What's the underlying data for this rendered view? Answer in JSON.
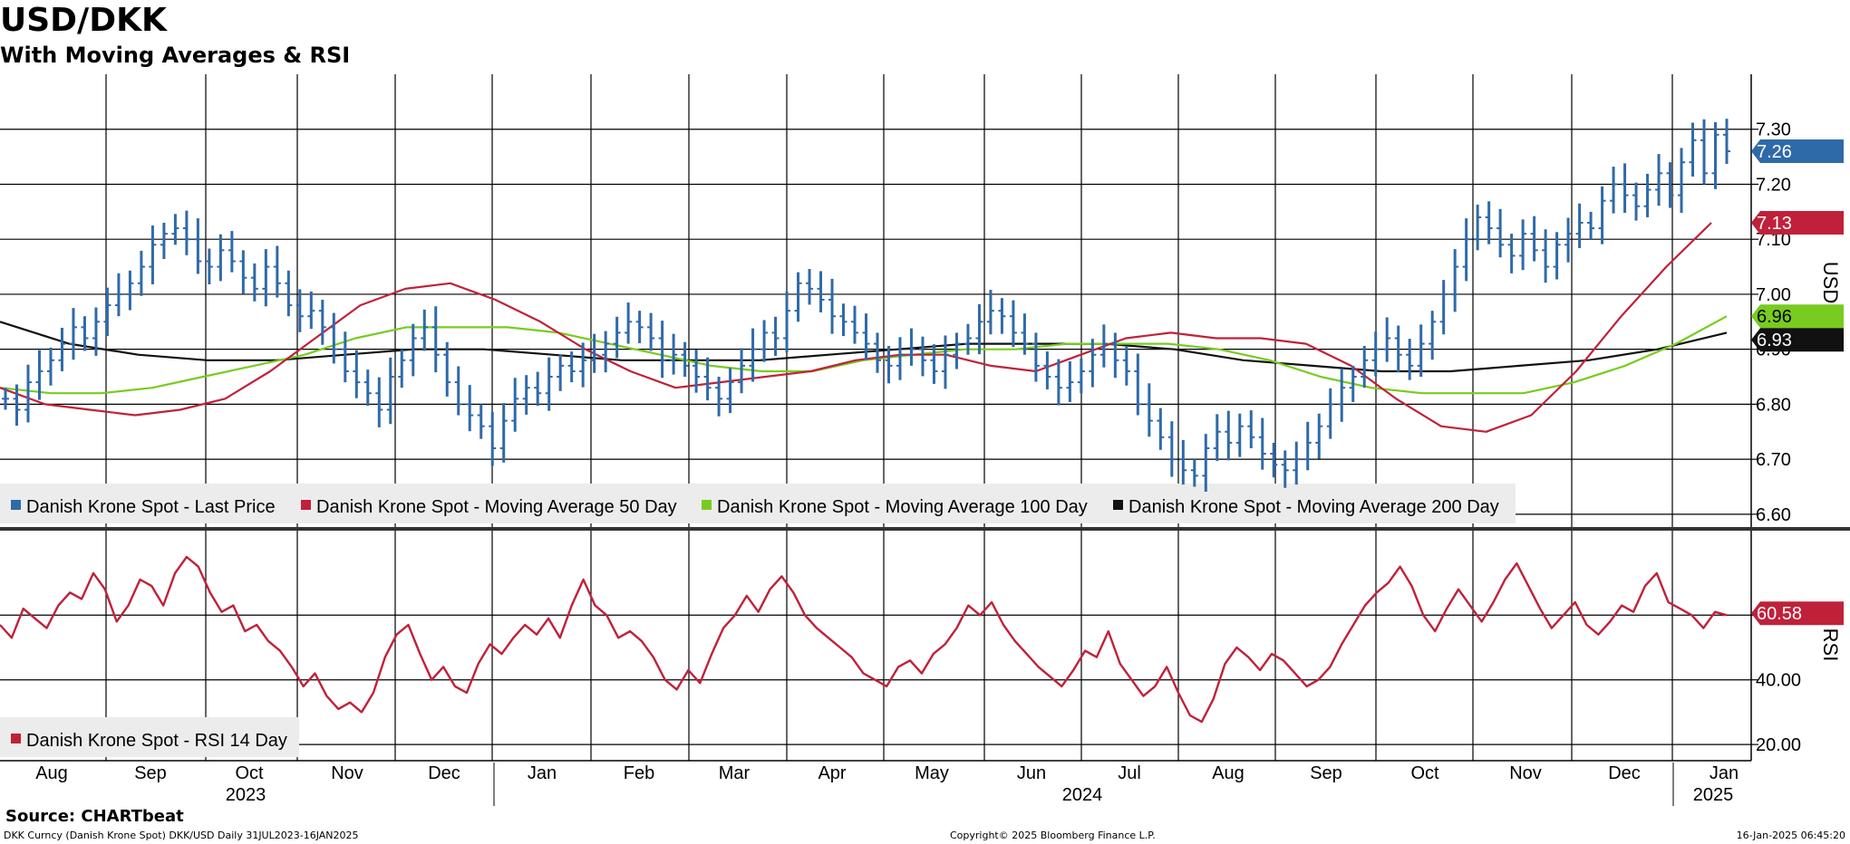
{
  "header": {
    "title": "USD/DKK",
    "subtitle": "With Moving Averages & RSI"
  },
  "footer": {
    "source": "Source: CHARTbeat",
    "ticker_info": "DKK Curncy (Danish Krone Spot) DKK/USD  Daily 31JUL2023-16JAN2025",
    "copyright": "Copyright© 2025 Bloomberg Finance L.P.",
    "timestamp": "16-Jan-2025 06:45:20"
  },
  "colors": {
    "price": "#2f6aa8",
    "ma50": "#c0213a",
    "ma100": "#77cc1f",
    "ma200": "#111111",
    "rsi": "#c0213a",
    "grid": "#000000",
    "legend_bg": "#ececec"
  },
  "chart_data": [
    {
      "type": "line",
      "title": "Price panel",
      "ylabel": "USD",
      "ylim": [
        6.58,
        7.4
      ],
      "y_ticks": [
        "7.30",
        "7.20",
        "7.10",
        "7.00",
        "6.90",
        "6.80",
        "6.70",
        "6.60"
      ],
      "legend": [
        "Danish Krone Spot - Last Price",
        "Danish Krone Spot - Moving Average 50 Day",
        "Danish Krone Spot - Moving Average 100 Day",
        "Danish Krone Spot - Moving Average 200 Day"
      ],
      "month_labels": [
        "Aug",
        "Sep",
        "Oct",
        "Nov",
        "Dec",
        "Jan",
        "Feb",
        "Mar",
        "Apr",
        "May",
        "Jun",
        "Jul",
        "Aug",
        "Sep",
        "Oct",
        "Nov",
        "Dec",
        "Jan"
      ],
      "year_labels": [
        "2023",
        "2024",
        "2025"
      ],
      "series": [
        {
          "name": "Danish Krone Spot - Last Price",
          "style": "ohlc-bars",
          "values": [
            6.81,
            6.79,
            6.84,
            6.86,
            6.88,
            6.91,
            6.94,
            6.92,
            6.95,
            6.98,
            7.0,
            7.02,
            7.05,
            7.09,
            7.11,
            7.12,
            7.1,
            7.06,
            7.05,
            7.08,
            7.06,
            7.03,
            7.01,
            7.05,
            7.02,
            6.98,
            6.96,
            6.97,
            6.94,
            6.9,
            6.86,
            6.84,
            6.82,
            6.79,
            6.85,
            6.88,
            6.92,
            6.94,
            6.89,
            6.84,
            6.8,
            6.78,
            6.76,
            6.72,
            6.77,
            6.81,
            6.83,
            6.82,
            6.85,
            6.87,
            6.86,
            6.88,
            6.89,
            6.91,
            6.93,
            6.95,
            6.94,
            6.92,
            6.88,
            6.89,
            6.87,
            6.85,
            6.83,
            6.81,
            6.84,
            6.87,
            6.9,
            6.93,
            6.92,
            6.97,
            7.02,
            7.01,
            6.99,
            6.96,
            6.95,
            6.93,
            6.91,
            6.88,
            6.87,
            6.89,
            6.9,
            6.88,
            6.86,
            6.89,
            6.91,
            6.92,
            6.95,
            6.97,
            6.96,
            6.93,
            6.91,
            6.87,
            6.85,
            6.83,
            6.84,
            6.86,
            6.89,
            6.91,
            6.88,
            6.86,
            6.8,
            6.77,
            6.74,
            6.7,
            6.68,
            6.67,
            6.72,
            6.75,
            6.73,
            6.76,
            6.74,
            6.71,
            6.69,
            6.68,
            6.7,
            6.73,
            6.76,
            6.8,
            6.83,
            6.85,
            6.88,
            6.9,
            6.92,
            6.89,
            6.87,
            6.91,
            6.95,
            7.0,
            7.05,
            7.1,
            7.14,
            7.12,
            7.09,
            7.07,
            7.11,
            7.08,
            7.05,
            7.09,
            7.11,
            7.13,
            7.12,
            7.17,
            7.2,
            7.18,
            7.16,
            7.19,
            7.22,
            7.18,
            7.24,
            7.28,
            7.22,
            7.29,
            7.26
          ]
        },
        {
          "name": "Danish Krone Spot - Moving Average 50 Day",
          "values": [
            6.83,
            6.8,
            6.79,
            6.78,
            6.79,
            6.81,
            6.86,
            6.92,
            6.98,
            7.01,
            7.02,
            6.99,
            6.95,
            6.9,
            6.86,
            6.83,
            6.84,
            6.85,
            6.86,
            6.88,
            6.89,
            6.89,
            6.87,
            6.86,
            6.89,
            6.92,
            6.93,
            6.92,
            6.92,
            6.91,
            6.87,
            6.81,
            6.76,
            6.75,
            6.78,
            6.86,
            6.96,
            7.05,
            7.13
          ]
        },
        {
          "name": "Danish Krone Spot - Moving Average 100 Day",
          "values": [
            6.83,
            6.82,
            6.82,
            6.83,
            6.85,
            6.87,
            6.89,
            6.92,
            6.94,
            6.94,
            6.94,
            6.93,
            6.91,
            6.89,
            6.87,
            6.86,
            6.86,
            6.88,
            6.89,
            6.9,
            6.9,
            6.91,
            6.91,
            6.91,
            6.9,
            6.88,
            6.85,
            6.83,
            6.82,
            6.82,
            6.82,
            6.84,
            6.87,
            6.91,
            6.96
          ]
        },
        {
          "name": "Danish Krone Spot - Moving Average 200 Day",
          "values": [
            6.95,
            6.91,
            6.89,
            6.88,
            6.88,
            6.89,
            6.9,
            6.9,
            6.89,
            6.88,
            6.88,
            6.88,
            6.89,
            6.9,
            6.91,
            6.91,
            6.91,
            6.9,
            6.88,
            6.87,
            6.86,
            6.86,
            6.87,
            6.88,
            6.9,
            6.93
          ]
        }
      ],
      "last_value_labels": [
        "7.26",
        "7.13",
        "6.96",
        "6.93"
      ]
    },
    {
      "type": "line",
      "title": "RSI panel",
      "ylabel": "RSI",
      "ylim": [
        15,
        85
      ],
      "y_ticks": [
        "60.00",
        "40.00",
        "20.00"
      ],
      "legend": [
        "Danish Krone Spot - RSI 14 Day"
      ],
      "series": [
        {
          "name": "Danish Krone Spot - RSI 14 Day",
          "values": [
            57,
            53,
            62,
            59,
            56,
            63,
            67,
            65,
            73,
            68,
            58,
            63,
            71,
            69,
            63,
            73,
            78,
            75,
            67,
            61,
            63,
            55,
            57,
            52,
            49,
            44,
            38,
            42,
            35,
            31,
            33,
            30,
            36,
            47,
            54,
            57,
            48,
            40,
            44,
            38,
            36,
            45,
            51,
            48,
            53,
            57,
            54,
            59,
            53,
            63,
            71,
            63,
            60,
            53,
            55,
            52,
            47,
            40,
            37,
            43,
            39,
            48,
            56,
            60,
            66,
            61,
            68,
            72,
            67,
            60,
            56,
            53,
            50,
            47,
            42,
            40,
            38,
            44,
            46,
            42,
            48,
            51,
            56,
            63,
            60,
            64,
            57,
            52,
            48,
            44,
            41,
            38,
            43,
            49,
            47,
            55,
            45,
            40,
            35,
            38,
            44,
            36,
            29,
            27,
            34,
            45,
            50,
            47,
            43,
            48,
            46,
            42,
            38,
            40,
            44,
            51,
            57,
            63,
            67,
            70,
            75,
            69,
            60,
            55,
            62,
            68,
            63,
            58,
            64,
            71,
            76,
            69,
            62,
            56,
            60,
            64,
            57,
            54,
            58,
            63,
            61,
            69,
            73,
            64,
            62,
            60,
            56,
            61,
            60
          ]
        }
      ],
      "last_value_label": "60.58"
    }
  ]
}
